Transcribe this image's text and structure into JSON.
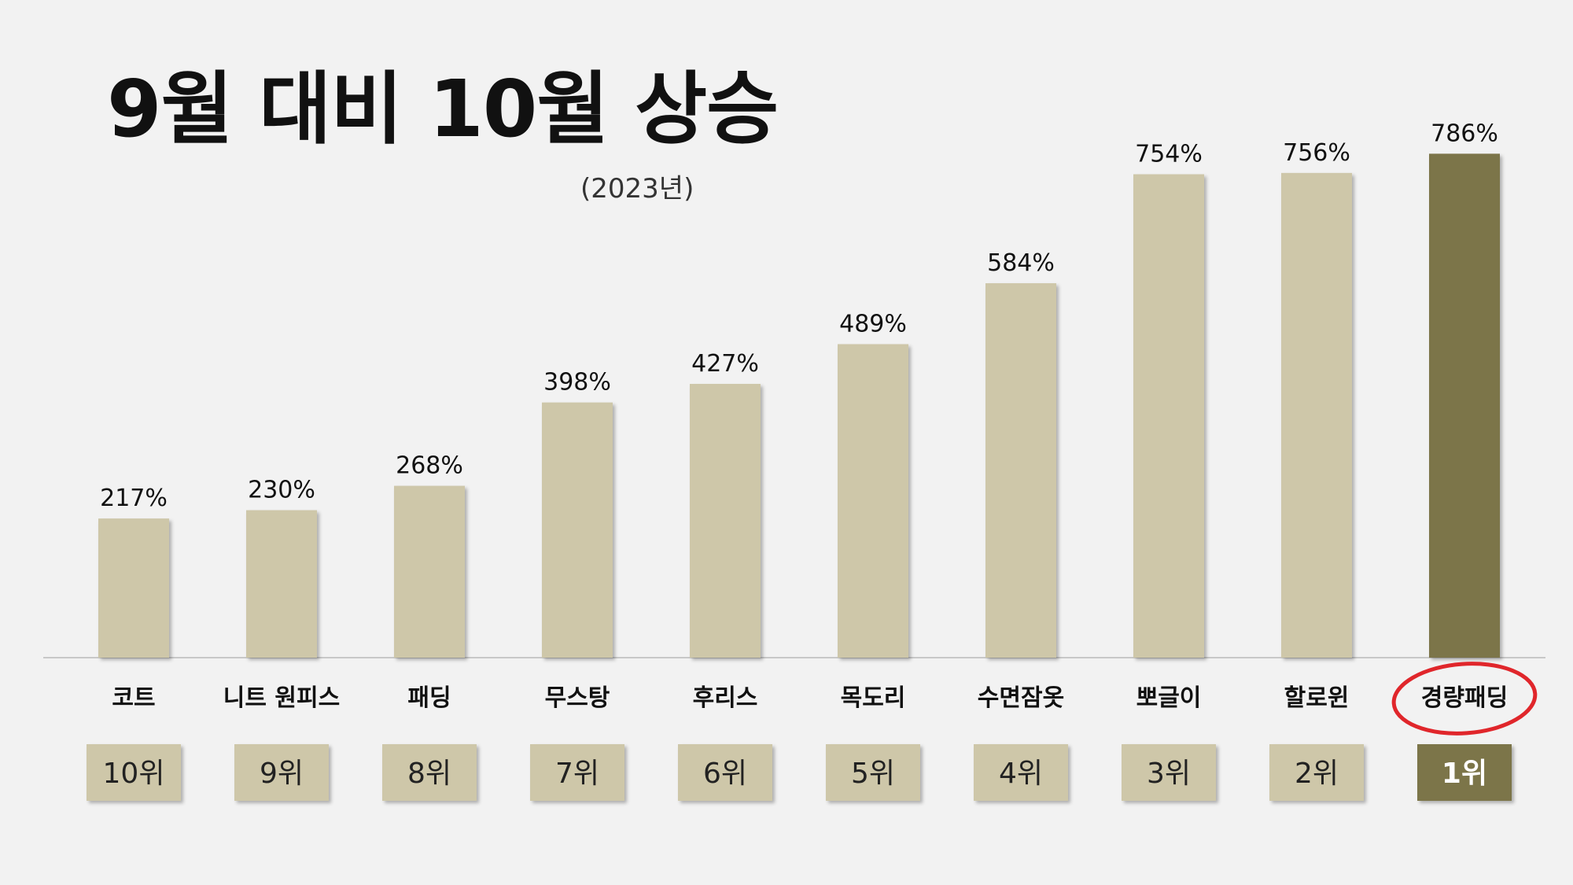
{
  "title": "9월 대비 10월 상승",
  "subtitle": "(2023년)",
  "colors": {
    "bar": "#cec7a9",
    "highlight": "#7b7449",
    "baseline": "#c8c8c8",
    "circle": "#e0262b"
  },
  "chart_data": {
    "type": "bar",
    "categories": [
      "코트",
      "니트 원피스",
      "패딩",
      "무스탕",
      "후리스",
      "목도리",
      "수면잠옷",
      "뽀글이",
      "할로윈",
      "경량패딩"
    ],
    "values": [
      217,
      230,
      268,
      398,
      427,
      489,
      584,
      754,
      756,
      786
    ],
    "value_labels": [
      "217%",
      "230%",
      "268%",
      "398%",
      "427%",
      "489%",
      "584%",
      "754%",
      "756%",
      "786%"
    ],
    "ranks": [
      "10위",
      "9위",
      "8위",
      "7위",
      "6위",
      "5위",
      "4위",
      "3위",
      "2위",
      "1위"
    ],
    "highlight_index": 9,
    "ylim": [
      0,
      800
    ],
    "grid": false,
    "legend": "none"
  }
}
